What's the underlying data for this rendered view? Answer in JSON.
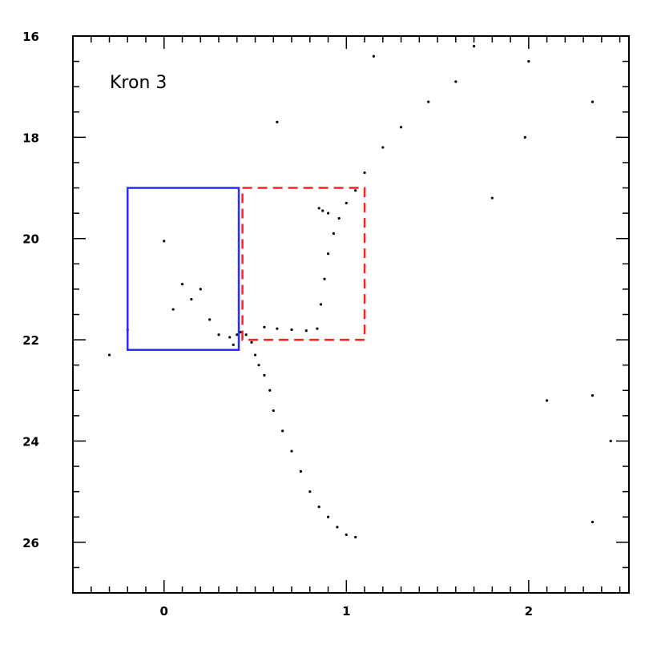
{
  "chart_data": {
    "type": "scatter",
    "title": "",
    "annotation": "Kron 3",
    "xlabel": "",
    "ylabel": "",
    "xlim": [
      -0.5,
      2.55
    ],
    "ylim": [
      27,
      16
    ],
    "y_inverted": true,
    "x_ticks": [
      0,
      1,
      2
    ],
    "x_tick_labels": [
      "0",
      "1",
      "2"
    ],
    "y_ticks": [
      16,
      18,
      20,
      22,
      24,
      26
    ],
    "y_tick_labels": [
      "16",
      "18",
      "20",
      "22",
      "24",
      "26"
    ],
    "grid": false,
    "legend": "none",
    "point_color": "#000000",
    "series": [
      {
        "points": [
          [
            0.36,
            21.95
          ],
          [
            0.38,
            22.1
          ],
          [
            0.4,
            21.9
          ],
          [
            0.42,
            21.85
          ],
          [
            0.45,
            21.9
          ],
          [
            0.48,
            22.05
          ],
          [
            0.5,
            22.3
          ],
          [
            0.52,
            22.5
          ],
          [
            0.55,
            22.7
          ],
          [
            0.58,
            23.0
          ],
          [
            0.6,
            23.4
          ],
          [
            0.65,
            23.8
          ],
          [
            0.7,
            24.2
          ],
          [
            0.75,
            24.6
          ],
          [
            0.8,
            25.0
          ],
          [
            0.85,
            25.3
          ],
          [
            0.9,
            25.5
          ],
          [
            0.95,
            25.7
          ],
          [
            1.0,
            25.85
          ],
          [
            1.05,
            25.9
          ],
          [
            0.55,
            21.75
          ],
          [
            0.62,
            21.78
          ],
          [
            0.7,
            21.8
          ],
          [
            0.78,
            21.82
          ],
          [
            0.84,
            21.78
          ],
          [
            0.86,
            21.3
          ],
          [
            0.88,
            20.8
          ],
          [
            0.9,
            20.3
          ],
          [
            0.93,
            19.9
          ],
          [
            0.96,
            19.6
          ],
          [
            1.0,
            19.3
          ],
          [
            1.05,
            19.05
          ],
          [
            1.1,
            18.7
          ],
          [
            1.2,
            18.2
          ],
          [
            1.3,
            17.8
          ],
          [
            1.45,
            17.3
          ],
          [
            1.6,
            16.9
          ],
          [
            0.85,
            19.4
          ],
          [
            0.87,
            19.45
          ],
          [
            0.9,
            19.5
          ],
          [
            0.1,
            20.9
          ],
          [
            0.15,
            21.2
          ],
          [
            0.2,
            21.0
          ],
          [
            0.05,
            21.4
          ],
          [
            0.25,
            21.6
          ],
          [
            0.0,
            20.05
          ],
          [
            0.3,
            21.9
          ],
          [
            -0.3,
            22.3
          ],
          [
            -0.2,
            21.8
          ],
          [
            2.35,
            17.3
          ],
          [
            2.0,
            16.5
          ],
          [
            1.98,
            18.0
          ],
          [
            1.8,
            19.2
          ],
          [
            2.1,
            23.2
          ],
          [
            2.35,
            23.1
          ],
          [
            2.45,
            24.0
          ],
          [
            2.35,
            25.6
          ],
          [
            1.7,
            16.2
          ],
          [
            1.15,
            16.4
          ],
          [
            0.62,
            17.7
          ]
        ]
      }
    ],
    "regions": [
      {
        "color": "#2a2aff",
        "style": "solid",
        "x": [
          -0.2,
          0.41
        ],
        "y": [
          19.0,
          22.2
        ]
      },
      {
        "color": "#ff2020",
        "style": "dashed",
        "x": [
          0.43,
          1.1
        ],
        "y": [
          19.0,
          22.0
        ]
      }
    ]
  }
}
